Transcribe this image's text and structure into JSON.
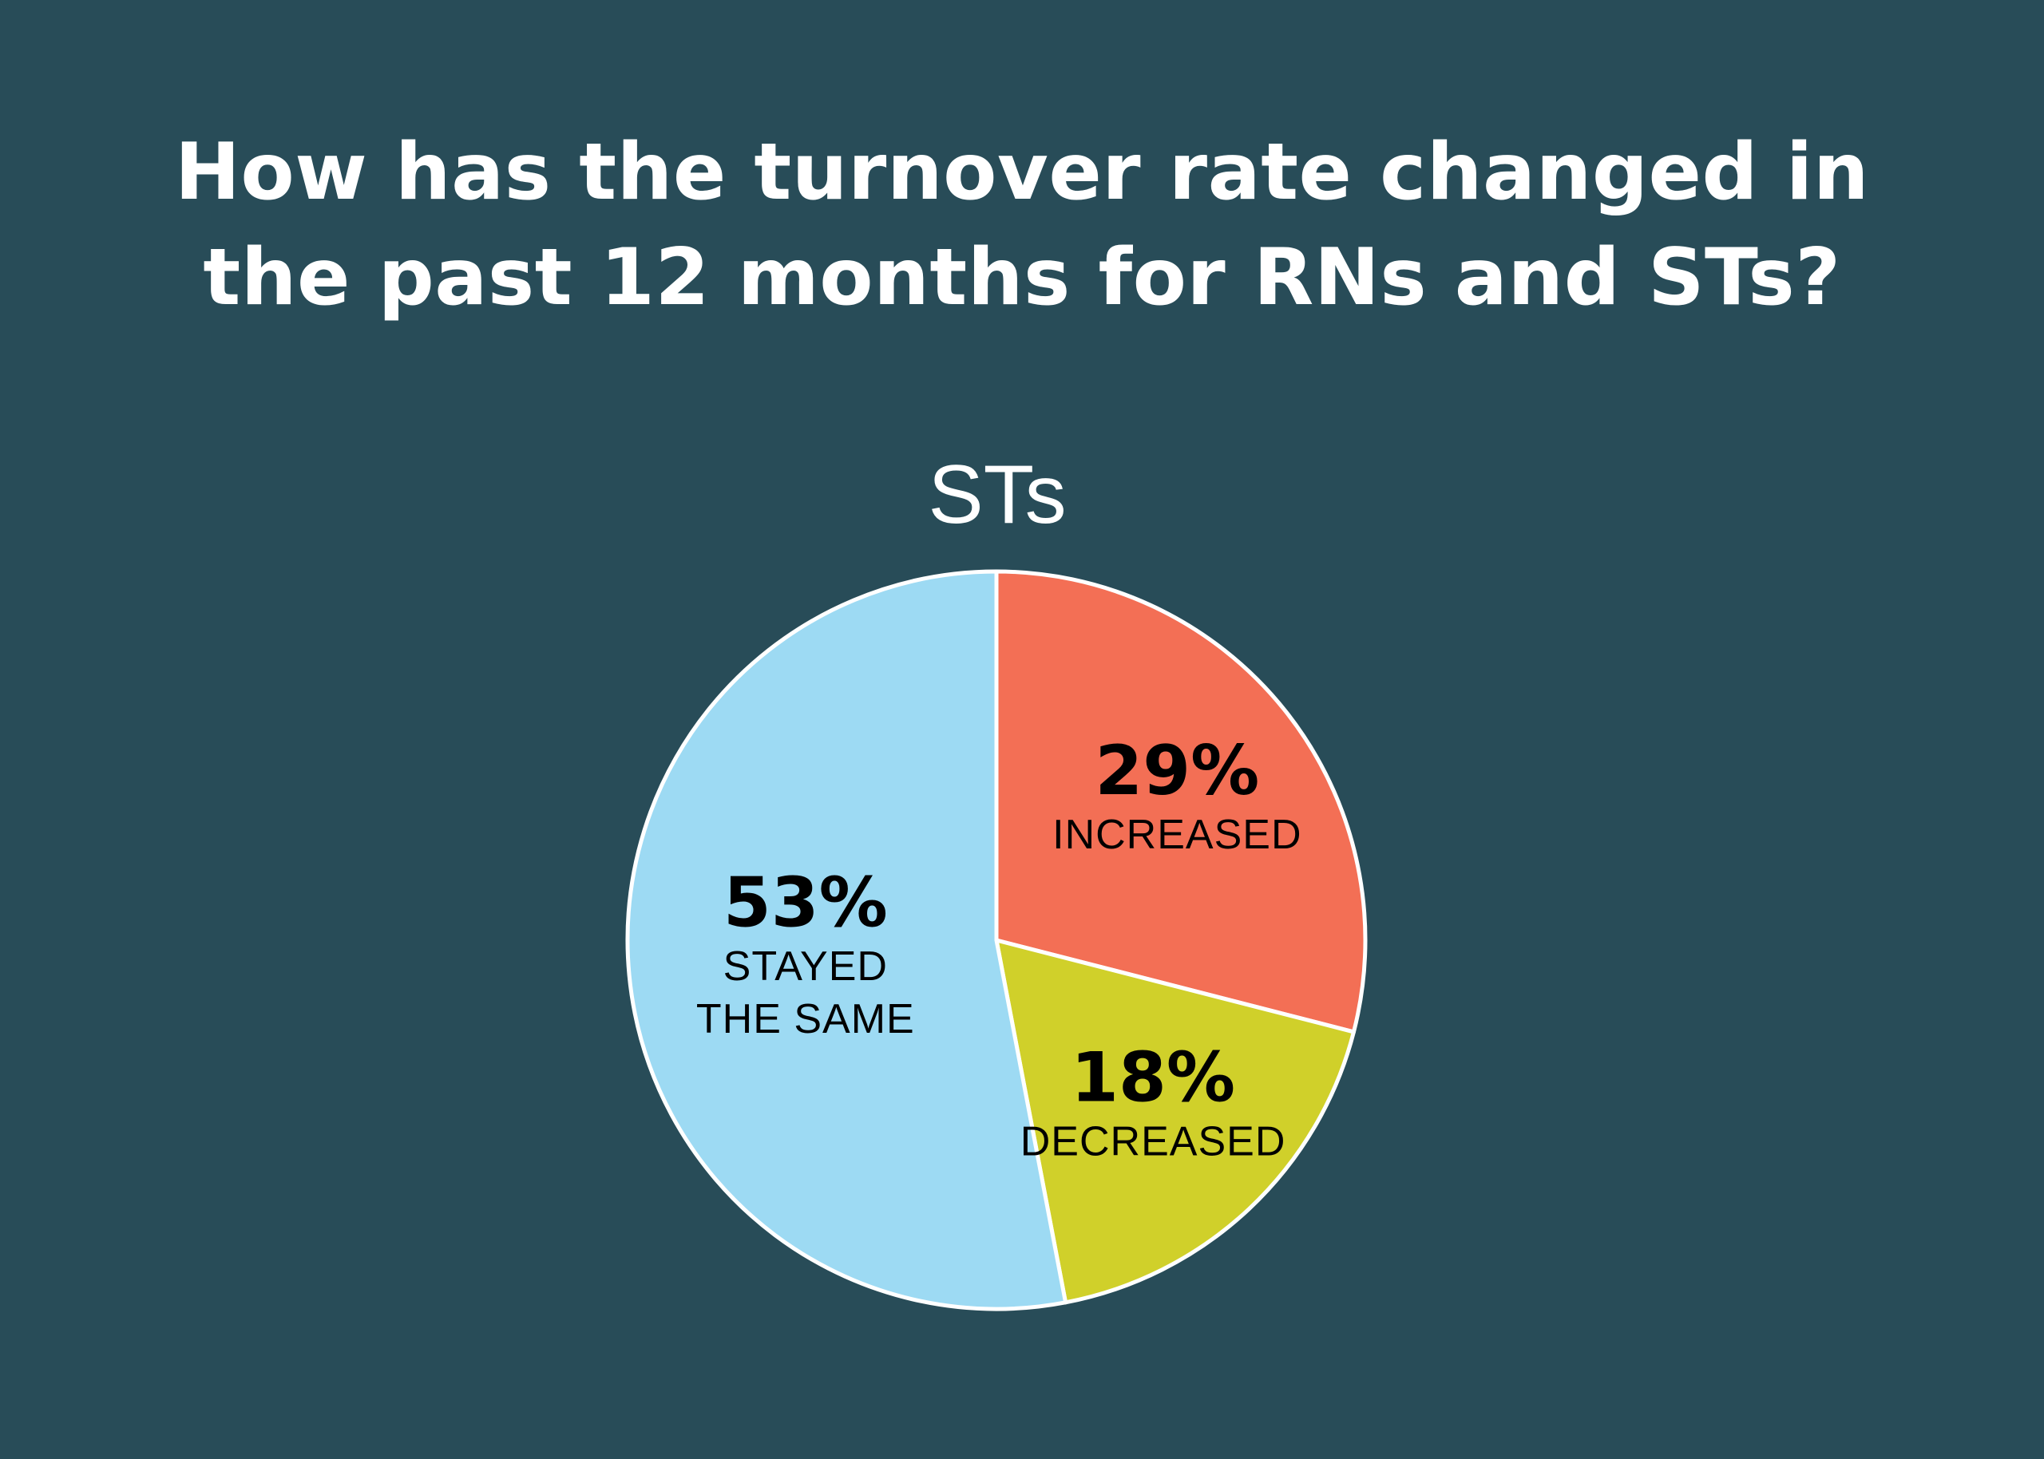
{
  "headline": {
    "line1": "How has the turnover rate changed in",
    "line2": "the past 12 months for RNs and STs?"
  },
  "chart_data": {
    "type": "pie",
    "title": "STs",
    "slices": [
      {
        "label": "INCREASED",
        "label_lines": [
          "INCREASED"
        ],
        "value": 29,
        "value_label": "29%",
        "color": "#f36f55"
      },
      {
        "label": "DECREASED",
        "label_lines": [
          "DECREASED"
        ],
        "value": 18,
        "value_label": "18%",
        "color": "#d0d02a"
      },
      {
        "label": "STAYED THE SAME",
        "label_lines": [
          "STAYED",
          "THE SAME"
        ],
        "value": 53,
        "value_label": "53%",
        "color": "#9ddaf3"
      }
    ],
    "start": "12 o'clock",
    "direction": "clockwise",
    "legend": "none",
    "slice_border_color": "#ffffff"
  },
  "colors": {
    "background": "#284c58",
    "title_text": "#ffffff",
    "label_text": "#000000"
  }
}
